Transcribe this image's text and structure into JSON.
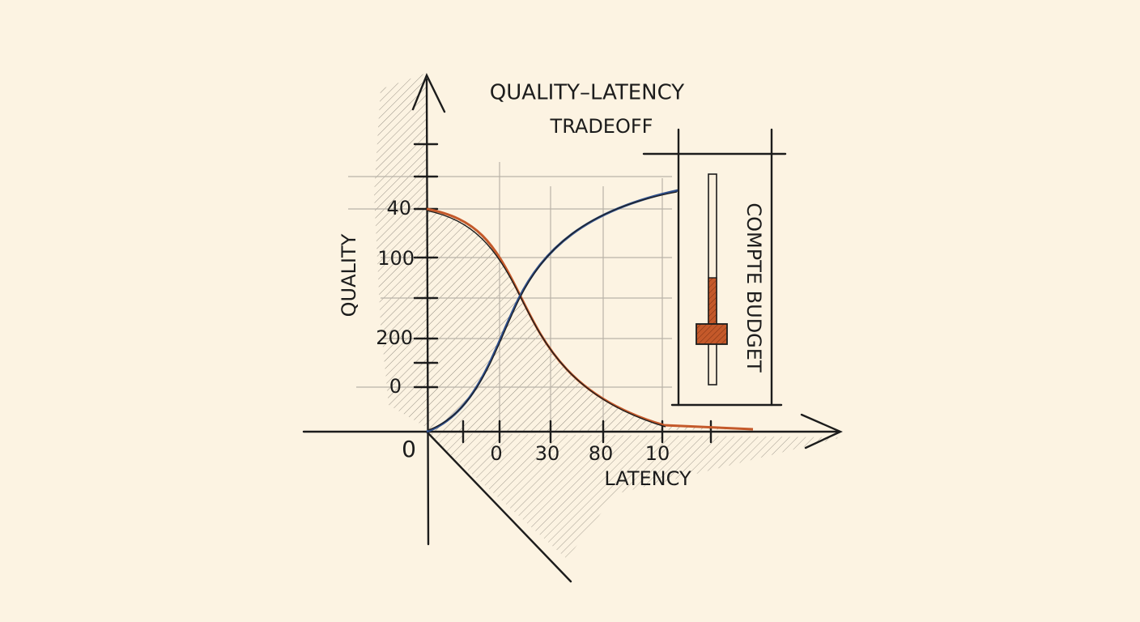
{
  "title_lines": [
    "QUALITY–LATENCY",
    "TRADEOFF"
  ],
  "y_axis_label": "QUALITY",
  "x_axis_label": "LATENCY",
  "origin_label": "0",
  "y_tick_labels": [
    "40",
    "100",
    "200",
    "0"
  ],
  "x_tick_labels": [
    "0",
    "30",
    "80",
    "10"
  ],
  "slider_label": "COMPTE BUDGET"
}
